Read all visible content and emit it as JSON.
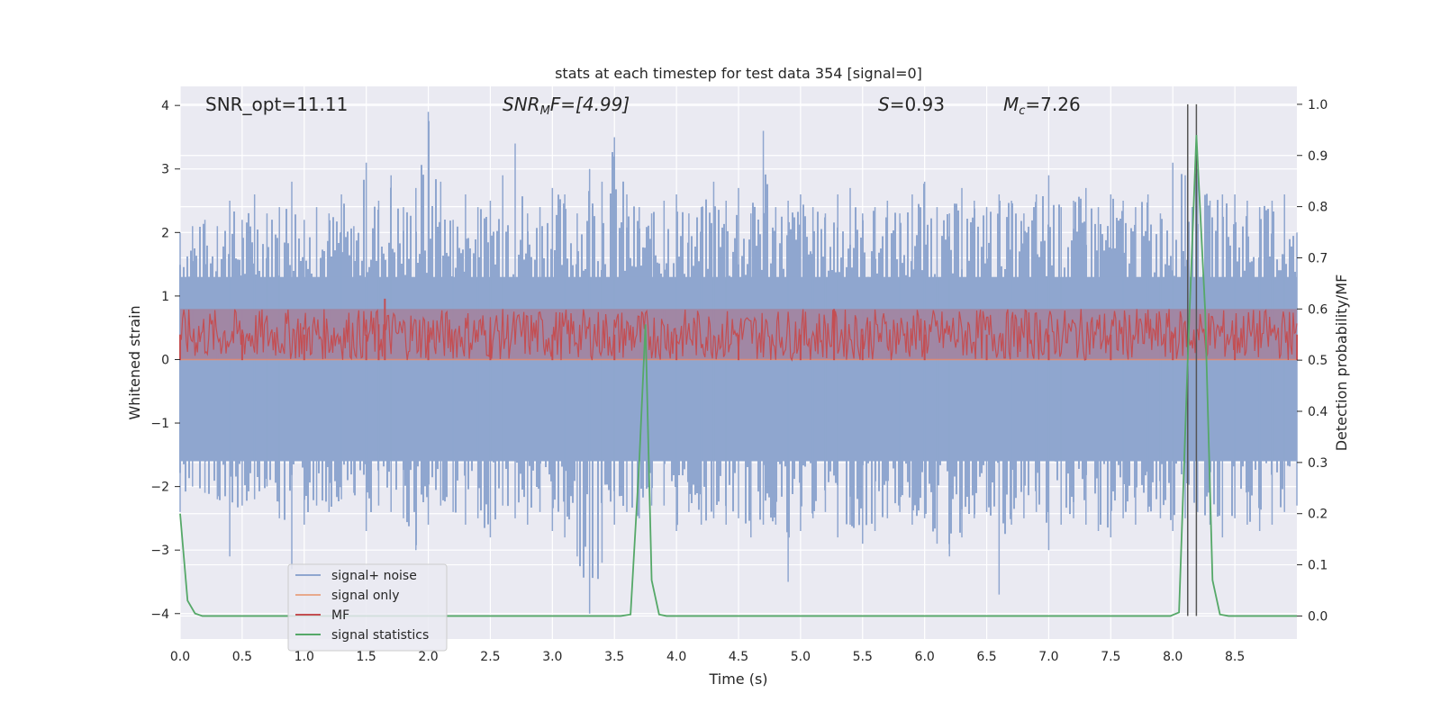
{
  "chart_data": {
    "type": "line",
    "title": "stats at each timestep for test data 354 [signal=0]",
    "xlabel": "Time (s)",
    "ylabel": "Whitened strain",
    "y2label": "Detection probability/MF",
    "xlim": [
      0.0,
      9.0
    ],
    "ylim": [
      -4.4,
      4.3
    ],
    "y2lim": [
      -0.045,
      1.035
    ],
    "xticks": [
      0.0,
      0.5,
      1.0,
      1.5,
      2.0,
      2.5,
      3.0,
      3.5,
      4.0,
      4.5,
      5.0,
      5.5,
      6.0,
      6.5,
      7.0,
      7.5,
      8.0,
      8.5
    ],
    "xtick_labels": [
      "0.0",
      "0.5",
      "1.0",
      "1.5",
      "2.0",
      "2.5",
      "3.0",
      "3.5",
      "4.0",
      "4.5",
      "5.0",
      "5.5",
      "6.0",
      "6.5",
      "7.0",
      "7.5",
      "8.0",
      "8.5"
    ],
    "yticks": [
      -4,
      -3,
      -2,
      -1,
      0,
      1,
      2,
      3,
      4
    ],
    "ytick_labels": [
      "−4",
      "−3",
      "−2",
      "−1",
      "0",
      "1",
      "2",
      "3",
      "4"
    ],
    "y2ticks": [
      0.0,
      0.1,
      0.2,
      0.3,
      0.4,
      0.5,
      0.6,
      0.7,
      0.8,
      0.9,
      1.0
    ],
    "y2tick_labels": [
      "0.0",
      "0.1",
      "0.2",
      "0.3",
      "0.4",
      "0.5",
      "0.6",
      "0.7",
      "0.8",
      "0.9",
      "1.0"
    ],
    "grid": true,
    "legend_position": "lower-left",
    "annotations": {
      "snr_opt": "SNR_opt=11.11",
      "snr_mf_label": "SNR",
      "snr_mf_sub": "M",
      "snr_mf_value": "F=[4.99]",
      "s_label": "S",
      "s_value": "=0.93",
      "mc_label": "M",
      "mc_sub": "c",
      "mc_value": "=7.26"
    },
    "series": [
      {
        "name": "signal+ noise",
        "color": "#8fa6cf",
        "axis": "left",
        "envelope": {
          "x": [
            0.0,
            0.1,
            0.2,
            0.3,
            0.4,
            0.5,
            0.6,
            0.7,
            0.8,
            0.9,
            1.0,
            1.1,
            1.2,
            1.3,
            1.4,
            1.5,
            1.6,
            1.7,
            1.8,
            1.9,
            2.0,
            2.1,
            2.2,
            2.3,
            2.4,
            2.5,
            2.6,
            2.7,
            2.8,
            2.9,
            3.0,
            3.1,
            3.2,
            3.3,
            3.4,
            3.5,
            3.6,
            3.7,
            3.8,
            3.9,
            4.0,
            4.1,
            4.2,
            4.3,
            4.4,
            4.5,
            4.6,
            4.7,
            4.8,
            4.9,
            5.0,
            5.1,
            5.2,
            5.3,
            5.4,
            5.5,
            5.6,
            5.7,
            5.8,
            5.9,
            6.0,
            6.1,
            6.2,
            6.3,
            6.4,
            6.5,
            6.6,
            6.7,
            6.8,
            6.9,
            7.0,
            7.1,
            7.2,
            7.3,
            7.4,
            7.5,
            7.6,
            7.7,
            7.8,
            7.9,
            8.0,
            8.1,
            8.2,
            8.3,
            8.4,
            8.5,
            8.6,
            8.7,
            8.8,
            8.9,
            9.0
          ],
          "upper": [
            2.0,
            2.1,
            2.2,
            2.1,
            2.5,
            2.2,
            2.6,
            2.3,
            2.4,
            2.8,
            2.2,
            2.4,
            2.3,
            2.6,
            2.1,
            3.1,
            2.5,
            2.9,
            2.4,
            2.7,
            3.9,
            2.8,
            2.2,
            2.6,
            2.4,
            2.5,
            2.9,
            3.4,
            2.3,
            2.4,
            2.7,
            2.6,
            2.3,
            3.0,
            2.8,
            3.5,
            2.6,
            2.4,
            2.3,
            2.5,
            2.6,
            2.3,
            2.4,
            2.8,
            2.5,
            2.7,
            2.3,
            3.6,
            2.4,
            2.5,
            2.6,
            2.4,
            2.3,
            2.6,
            2.7,
            2.3,
            2.4,
            2.5,
            2.3,
            2.6,
            2.8,
            2.4,
            2.3,
            2.7,
            2.5,
            2.4,
            2.6,
            2.5,
            2.3,
            2.6,
            2.9,
            2.4,
            2.5,
            2.7,
            2.4,
            2.6,
            2.5,
            2.4,
            2.6,
            2.3,
            3.1,
            2.9,
            3.0,
            2.5,
            2.6,
            2.6,
            2.5,
            2.4,
            2.5,
            2.6,
            2.0
          ],
          "lower": [
            -2.4,
            -2.0,
            -2.1,
            -2.2,
            -3.1,
            -2.3,
            -2.2,
            -2.0,
            -2.5,
            -3.3,
            -2.6,
            -2.3,
            -2.4,
            -2.2,
            -2.1,
            -2.7,
            -2.3,
            -2.4,
            -2.5,
            -3.0,
            -2.6,
            -2.3,
            -2.4,
            -2.6,
            -2.5,
            -2.8,
            -2.3,
            -2.5,
            -2.6,
            -2.4,
            -2.7,
            -2.8,
            -3.1,
            -4.0,
            -3.2,
            -2.6,
            -2.4,
            -2.5,
            -2.3,
            -2.3,
            -2.7,
            -2.4,
            -2.6,
            -2.5,
            -2.6,
            -2.5,
            -2.8,
            -2.6,
            -2.6,
            -3.5,
            -2.7,
            -2.5,
            -2.4,
            -2.8,
            -2.6,
            -2.9,
            -2.7,
            -2.5,
            -2.4,
            -2.6,
            -2.5,
            -2.9,
            -3.1,
            -2.8,
            -2.5,
            -2.4,
            -3.7,
            -2.6,
            -2.5,
            -2.4,
            -3.0,
            -2.6,
            -2.5,
            -2.6,
            -2.7,
            -2.8,
            -2.5,
            -2.6,
            -2.4,
            -2.5,
            -2.7,
            -2.5,
            -2.4,
            -2.6,
            -2.8,
            -2.5,
            -2.6,
            -2.7,
            -2.6,
            -2.4,
            -2.3
          ]
        }
      },
      {
        "name": "signal only",
        "color": "#e8a98c",
        "axis": "left",
        "x": [
          0.0,
          9.0
        ],
        "y": [
          0.0,
          0.0
        ]
      },
      {
        "name": "MF",
        "color": "#c44e52",
        "axis": "right",
        "x": [
          0.0,
          0.5,
          1.0,
          1.5,
          1.6,
          1.65,
          2.0,
          2.5,
          3.0,
          3.5,
          4.0,
          4.5,
          5.0,
          5.27,
          5.5,
          6.0,
          6.5,
          7.0,
          7.5,
          8.0,
          8.5,
          9.0
        ],
        "y": [
          0.55,
          0.55,
          0.55,
          0.55,
          0.57,
          0.62,
          0.55,
          0.55,
          0.55,
          0.55,
          0.55,
          0.55,
          0.55,
          0.6,
          0.55,
          0.55,
          0.55,
          0.55,
          0.55,
          0.55,
          0.55,
          0.55
        ],
        "band": [
          0.5,
          0.6
        ]
      },
      {
        "name": "signal statistics",
        "color": "#55a868",
        "axis": "right",
        "x": [
          0.0,
          0.06,
          0.12,
          0.18,
          3.55,
          3.63,
          3.7,
          3.75,
          3.8,
          3.86,
          3.92,
          7.98,
          8.05,
          8.12,
          8.19,
          8.26,
          8.32,
          8.38,
          8.45,
          9.0
        ],
        "y": [
          0.2,
          0.03,
          0.005,
          0.0,
          0.0,
          0.003,
          0.3,
          0.57,
          0.07,
          0.003,
          0.0,
          0.0,
          0.007,
          0.5,
          0.94,
          0.6,
          0.07,
          0.003,
          0.0,
          0.0
        ]
      }
    ],
    "vlines": [
      8.12,
      8.19
    ],
    "legend": [
      "signal+ noise",
      "signal only",
      "MF",
      "signal statistics"
    ]
  }
}
